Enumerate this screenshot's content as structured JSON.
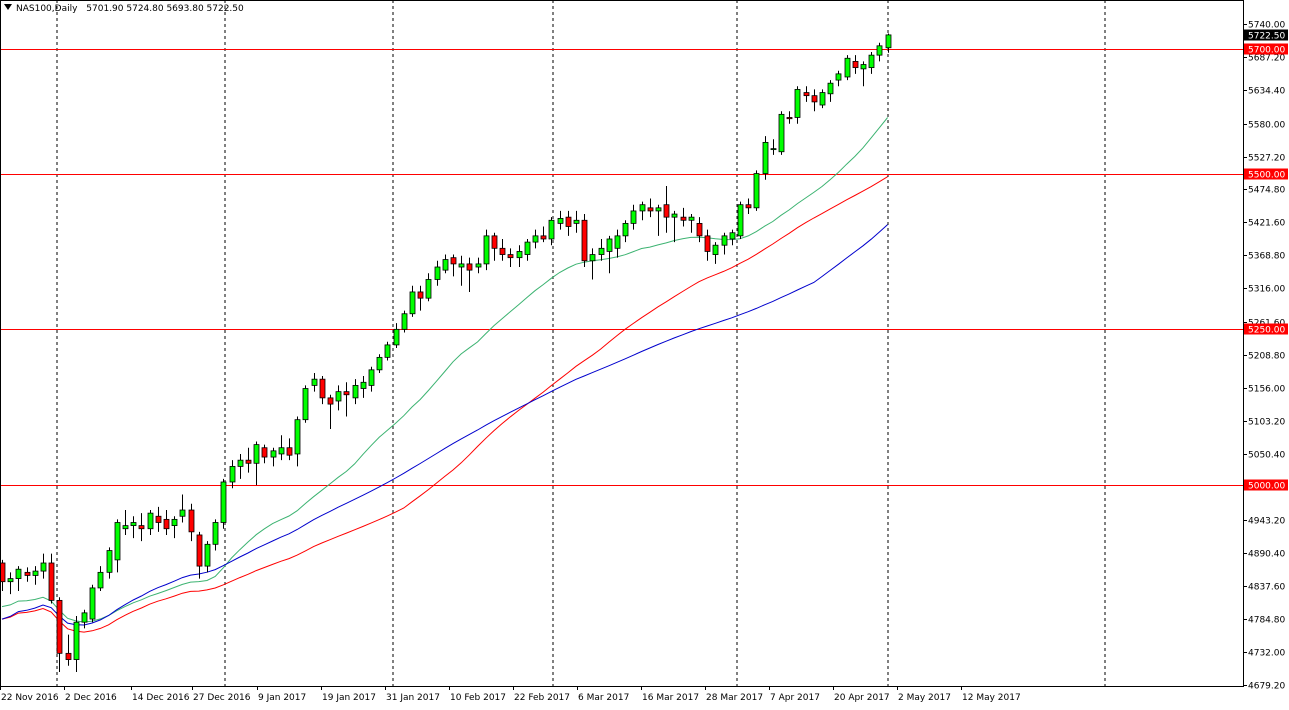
{
  "header": {
    "symbol": "NAS100,Daily",
    "ohlc": "5701.90 5724.80 5693.80 5722.50"
  },
  "chart_data": {
    "type": "candlestick",
    "ylim": [
      4679.2,
      5740.0
    ],
    "y_ticks": [
      5740.0,
      5687.2,
      5634.4,
      5580.0,
      5527.2,
      5474.8,
      5421.6,
      5368.8,
      5316.0,
      5261.6,
      5208.8,
      5156.0,
      5103.2,
      5050.4,
      4996.4,
      4943.2,
      4890.4,
      4837.6,
      4784.8,
      4732.0,
      4679.2
    ],
    "y_tick_labels": [
      "5740.00",
      "5687.20",
      "5634.40",
      "5580.00",
      "5527.20",
      "5474.80",
      "5421.60",
      "5368.80",
      "5316.00",
      "5261.60",
      "5208.80",
      "5156.00",
      "5103.20",
      "5050.40",
      "",
      "4943.20",
      "4890.40",
      "4837.60",
      "4784.80",
      "4732.00",
      "4679.20"
    ],
    "date_labels": [
      {
        "index": 0,
        "label": "22 Nov 2016"
      },
      {
        "index": 8,
        "label": "2 Dec 2016"
      },
      {
        "index": 16,
        "label": "14 Dec 2016"
      },
      {
        "index": 24,
        "label": "27 Dec 2016"
      },
      {
        "index": 32,
        "label": "9 Jan 2017"
      },
      {
        "index": 40,
        "label": "19 Jan 2017"
      },
      {
        "index": 48,
        "label": "31 Jan 2017"
      },
      {
        "index": 56,
        "label": "10 Feb 2017"
      },
      {
        "index": 64,
        "label": "22 Feb 2017"
      },
      {
        "index": 72,
        "label": "6 Mar 2017"
      },
      {
        "index": 80,
        "label": "16 Mar 2017"
      },
      {
        "index": 88,
        "label": "28 Mar 2017"
      },
      {
        "index": 96,
        "label": "7 Apr 2017"
      },
      {
        "index": 104,
        "label": "20 Apr 2017"
      },
      {
        "index": 112,
        "label": "2 May 2017"
      },
      {
        "index": 120,
        "label": "12 May 2017"
      }
    ],
    "period_separators": [
      7,
      27,
      47,
      66,
      88,
      106,
      132
    ],
    "horizontal_levels": [
      {
        "value": 5700.0,
        "label": "5700.00",
        "color": "#ff0000"
      },
      {
        "value": 5500.0,
        "label": "5500.00",
        "color": "#ff0000"
      },
      {
        "value": 5250.0,
        "label": "5250.00",
        "color": "#ff0000"
      },
      {
        "value": 5000.0,
        "label": "5000.00",
        "color": "#ff0000"
      }
    ],
    "current_price": {
      "value": 5722.5,
      "label": "5722.50",
      "color": "#000000"
    },
    "colors": {
      "bull": "#00ff00",
      "bear": "#ff0000",
      "wick": "#000000",
      "ma_fast": "#3cb371",
      "ma_mid": "#ff0000",
      "ma_slow": "#0000cd"
    },
    "candles": [
      [
        4875,
        4880,
        4830,
        4845
      ],
      [
        4845,
        4860,
        4825,
        4850
      ],
      [
        4850,
        4870,
        4830,
        4865
      ],
      [
        4860,
        4868,
        4845,
        4855
      ],
      [
        4855,
        4870,
        4840,
        4862
      ],
      [
        4862,
        4890,
        4850,
        4875
      ],
      [
        4875,
        4890,
        4810,
        4815
      ],
      [
        4815,
        4820,
        4700,
        4730
      ],
      [
        4730,
        4760,
        4710,
        4720
      ],
      [
        4720,
        4790,
        4700,
        4780
      ],
      [
        4780,
        4800,
        4770,
        4795
      ],
      [
        4785,
        4840,
        4780,
        4835
      ],
      [
        4835,
        4870,
        4830,
        4860
      ],
      [
        4860,
        4900,
        4850,
        4895
      ],
      [
        4880,
        4945,
        4860,
        4940
      ],
      [
        4930,
        4960,
        4920,
        4935
      ],
      [
        4935,
        4950,
        4915,
        4940
      ],
      [
        4935,
        4955,
        4910,
        4930
      ],
      [
        4930,
        4960,
        4920,
        4955
      ],
      [
        4950,
        4965,
        4925,
        4940
      ],
      [
        4945,
        4960,
        4920,
        4930
      ],
      [
        4935,
        4950,
        4915,
        4945
      ],
      [
        4950,
        4985,
        4940,
        4960
      ],
      [
        4960,
        4970,
        4910,
        4925
      ],
      [
        4920,
        4925,
        4850,
        4870
      ],
      [
        4870,
        4910,
        4860,
        4905
      ],
      [
        4905,
        4945,
        4895,
        4940
      ],
      [
        4940,
        5010,
        4930,
        5005
      ],
      [
        5005,
        5040,
        4995,
        5030
      ],
      [
        5030,
        5050,
        5010,
        5040
      ],
      [
        5040,
        5060,
        5020,
        5035
      ],
      [
        5035,
        5070,
        5000,
        5065
      ],
      [
        5060,
        5065,
        5035,
        5045
      ],
      [
        5045,
        5060,
        5030,
        5055
      ],
      [
        5050,
        5080,
        5040,
        5060
      ],
      [
        5060,
        5075,
        5040,
        5048
      ],
      [
        5050,
        5110,
        5030,
        5105
      ],
      [
        5105,
        5160,
        5100,
        5155
      ],
      [
        5160,
        5180,
        5150,
        5170
      ],
      [
        5170,
        5175,
        5130,
        5140
      ],
      [
        5140,
        5145,
        5090,
        5130
      ],
      [
        5135,
        5160,
        5120,
        5150
      ],
      [
        5150,
        5165,
        5110,
        5145
      ],
      [
        5140,
        5170,
        5130,
        5160
      ],
      [
        5155,
        5175,
        5140,
        5165
      ],
      [
        5160,
        5190,
        5150,
        5185
      ],
      [
        5185,
        5210,
        5180,
        5205
      ],
      [
        5205,
        5230,
        5200,
        5225
      ],
      [
        5225,
        5260,
        5220,
        5250
      ],
      [
        5250,
        5280,
        5245,
        5275
      ],
      [
        5275,
        5320,
        5270,
        5310
      ],
      [
        5310,
        5320,
        5280,
        5300
      ],
      [
        5300,
        5340,
        5295,
        5330
      ],
      [
        5330,
        5360,
        5320,
        5350
      ],
      [
        5345,
        5370,
        5340,
        5362
      ],
      [
        5365,
        5370,
        5335,
        5355
      ],
      [
        5350,
        5368,
        5320,
        5355
      ],
      [
        5355,
        5365,
        5310,
        5345
      ],
      [
        5350,
        5365,
        5340,
        5355
      ],
      [
        5355,
        5410,
        5345,
        5400
      ],
      [
        5400,
        5405,
        5360,
        5380
      ],
      [
        5380,
        5395,
        5360,
        5370
      ],
      [
        5370,
        5380,
        5350,
        5365
      ],
      [
        5365,
        5385,
        5350,
        5375
      ],
      [
        5370,
        5395,
        5360,
        5390
      ],
      [
        5390,
        5410,
        5380,
        5400
      ],
      [
        5400,
        5415,
        5390,
        5395
      ],
      [
        5395,
        5430,
        5385,
        5425
      ],
      [
        5420,
        5440,
        5410,
        5428
      ],
      [
        5430,
        5440,
        5400,
        5415
      ],
      [
        5420,
        5440,
        5405,
        5425
      ],
      [
        5425,
        5435,
        5350,
        5360
      ],
      [
        5360,
        5380,
        5330,
        5370
      ],
      [
        5370,
        5395,
        5360,
        5380
      ],
      [
        5375,
        5400,
        5340,
        5395
      ],
      [
        5380,
        5410,
        5365,
        5400
      ],
      [
        5400,
        5425,
        5390,
        5420
      ],
      [
        5420,
        5450,
        5410,
        5440
      ],
      [
        5440,
        5455,
        5425,
        5450
      ],
      [
        5445,
        5460,
        5430,
        5440
      ],
      [
        5440,
        5450,
        5400,
        5445
      ],
      [
        5450,
        5480,
        5405,
        5430
      ],
      [
        5430,
        5440,
        5390,
        5435
      ],
      [
        5430,
        5445,
        5415,
        5425
      ],
      [
        5425,
        5435,
        5405,
        5430
      ],
      [
        5420,
        5430,
        5390,
        5400
      ],
      [
        5400,
        5410,
        5360,
        5375
      ],
      [
        5370,
        5390,
        5355,
        5385
      ],
      [
        5385,
        5405,
        5370,
        5400
      ],
      [
        5395,
        5410,
        5385,
        5405
      ],
      [
        5400,
        5455,
        5395,
        5450
      ],
      [
        5450,
        5460,
        5435,
        5445
      ],
      [
        5445,
        5505,
        5440,
        5500
      ],
      [
        5500,
        5560,
        5490,
        5550
      ],
      [
        5540,
        5555,
        5530,
        5540
      ],
      [
        5535,
        5600,
        5530,
        5595
      ],
      [
        5590,
        5600,
        5580,
        5588
      ],
      [
        5590,
        5640,
        5580,
        5635
      ],
      [
        5630,
        5640,
        5615,
        5625
      ],
      [
        5625,
        5635,
        5600,
        5615
      ],
      [
        5610,
        5635,
        5605,
        5630
      ],
      [
        5628,
        5650,
        5615,
        5645
      ],
      [
        5650,
        5665,
        5640,
        5660
      ],
      [
        5655,
        5690,
        5650,
        5685
      ],
      [
        5680,
        5690,
        5660,
        5670
      ],
      [
        5668,
        5680,
        5640,
        5675
      ],
      [
        5670,
        5695,
        5660,
        5690
      ],
      [
        5690,
        5710,
        5680,
        5705
      ],
      [
        5701.9,
        5724.8,
        5693.8,
        5722.5
      ]
    ],
    "ma_fast_value_last": 5590,
    "ma_mid_value_last": 5495,
    "ma_slow_value_last": 5418
  }
}
